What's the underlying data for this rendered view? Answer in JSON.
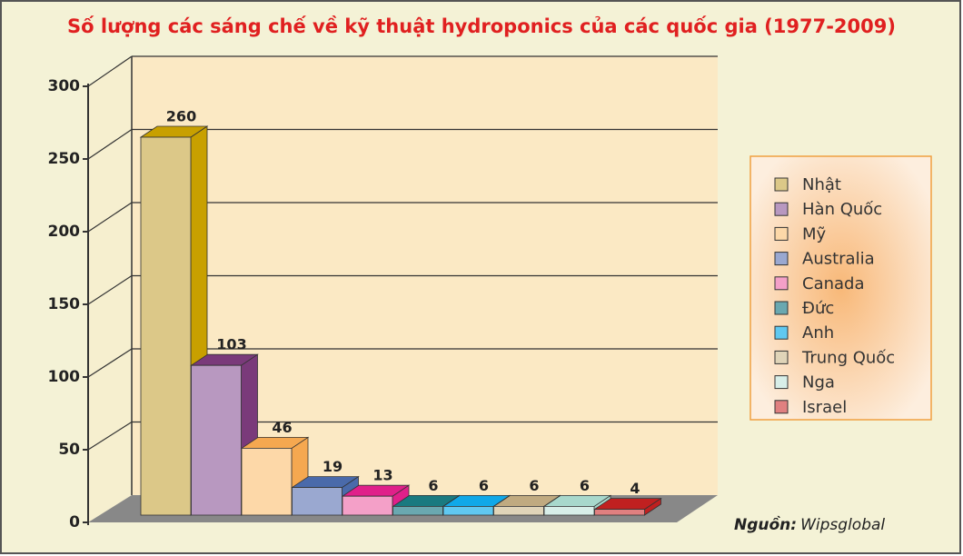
{
  "chart_data": {
    "type": "bar3d",
    "title": "Số lượng các sáng chế về kỹ thuật hydroponics của các quốc gia (1977-2009)",
    "categories": [
      "Nhật",
      "Hàn Quốc",
      "Mỹ",
      "Australia",
      "Canada",
      "Đức",
      "Anh",
      "Trung Quốc",
      "Nga",
      "Israel"
    ],
    "values": [
      260,
      103,
      46,
      19,
      13,
      6,
      6,
      6,
      6,
      4
    ],
    "colors": [
      "#dcc888",
      "#b898c0",
      "#fdd8a8",
      "#9aa8d0",
      "#f4a0c8",
      "#6aa8b0",
      "#60c8f0",
      "#e0d4b8",
      "#d8eee8",
      "#e08080"
    ],
    "side_colors": [
      "#c8a000",
      "#7a3a7a",
      "#f5a850",
      "#4a6aaa",
      "#e0208a",
      "#1a7a80",
      "#10a8e8",
      "#c0aa80",
      "#a8d8cc",
      "#c02020"
    ],
    "ylim": [
      0,
      300
    ],
    "yticks": [
      0,
      50,
      100,
      150,
      200,
      250,
      300
    ],
    "grid": true,
    "legend": "right",
    "source_label": "Nguồn:",
    "source": "Wipsglobal"
  }
}
